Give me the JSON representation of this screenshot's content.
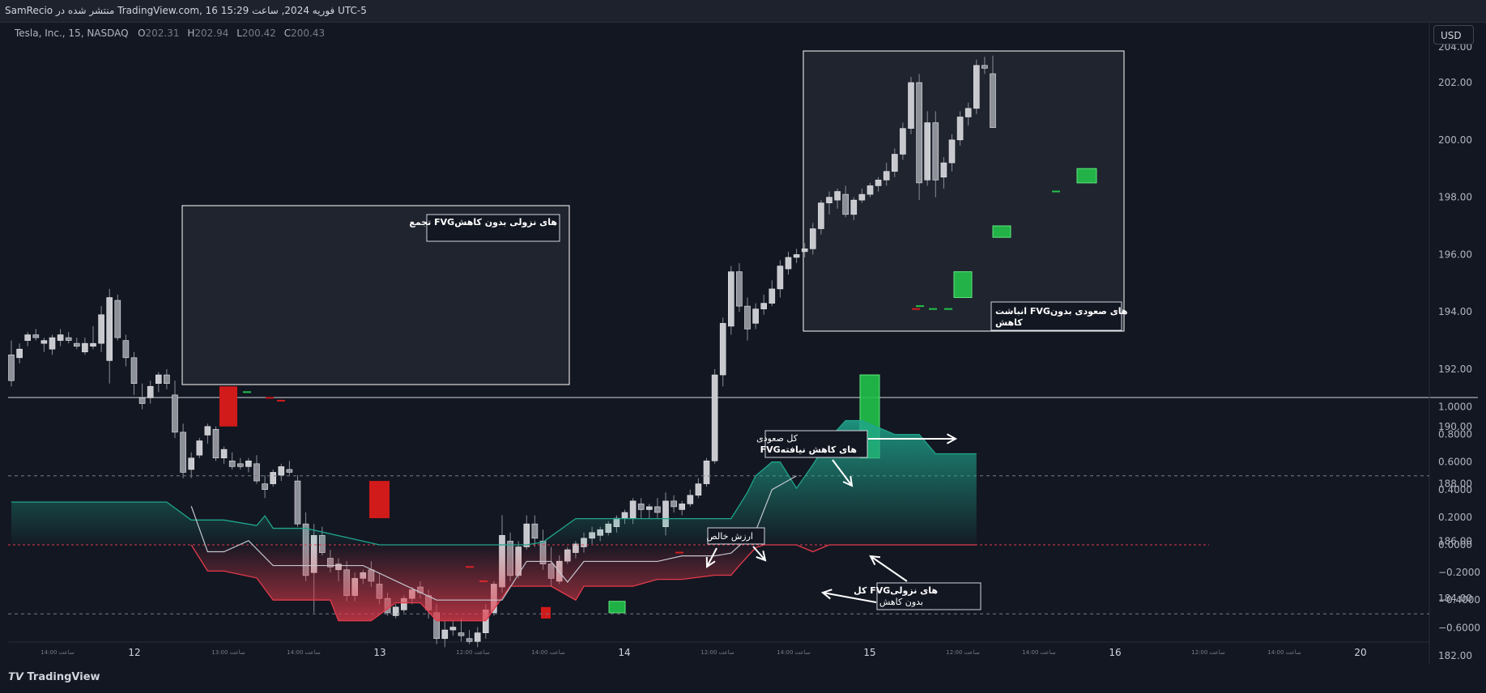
{
  "header": {
    "title": "SamRecio منتشر شده در TradingView.com, 16 فوریه 2024, ساعت 15:29 UTC-5"
  },
  "symbol": {
    "name": "Tesla, Inc., 15, NASDAQ",
    "o_label": "O",
    "o": "202.31",
    "h_label": "H",
    "h": "202.94",
    "l_label": "L",
    "l": "200.42",
    "c_label": "C",
    "c": "200.43"
  },
  "currency": "USD",
  "colors": {
    "bg": "#131722",
    "up_fvg": "#22c24a",
    "down_fvg": "#d11a1a",
    "teal": "#1fa58c",
    "red": "#e33b4b",
    "candle": "#c8c9ce"
  },
  "price_axis": {
    "ticks": [
      "202.00",
      "200.00",
      "198.00",
      "196.00",
      "194.00",
      "192.00",
      "190.00",
      "188.00",
      "186.00",
      "184.00",
      "182.00"
    ],
    "top_partial": "204.00"
  },
  "osc_axis": {
    "ticks": [
      "1.0000",
      "0.8000",
      "0.6000",
      "0.4000",
      "0.2000",
      "0.0000",
      "−0.2000",
      "−0.4000",
      "−0.6000"
    ]
  },
  "time_axis": {
    "days": [
      "12",
      "13",
      "14",
      "15",
      "16",
      "20"
    ],
    "minor": [
      "14:00 ساعت",
      "13:00 ساعت",
      "14:00 ساعت",
      "12:00 ساعت",
      "14:00 ساعت",
      "12:00 ساعت",
      "14:00 ساعت",
      "12:00 ساعت",
      "14:00 ساعت",
      "12:00 ساعت",
      "14:00 ساعت"
    ]
  },
  "annotations": {
    "bearish_box": "تجمع FVGهای نزولی بدون کاهش",
    "bullish_box_line1": "انباشت FVGهای صعودی بدون",
    "bullish_box_line2": "کاهش",
    "total_bull_line1": "کل صعودی",
    "total_bull_line2": "FVGهای کاهش نیافته",
    "net_value": "ارزش خالص",
    "total_bear_line1": "کل FVGهای نزولی",
    "total_bear_line2": "بدون کاهش"
  },
  "footer": {
    "brand": "TradingView"
  },
  "chart_data": {
    "type": "candlestick",
    "price_ylim": [
      181,
      204
    ],
    "candles": [
      [
        192.5,
        193.0,
        191.4,
        191.6
      ],
      [
        192.4,
        192.9,
        192.2,
        192.7
      ],
      [
        193.0,
        193.3,
        192.8,
        193.2
      ],
      [
        193.2,
        193.4,
        193.0,
        193.1
      ],
      [
        192.9,
        193.1,
        192.6,
        193.0
      ],
      [
        192.7,
        193.2,
        192.5,
        193.1
      ],
      [
        193.0,
        193.4,
        192.8,
        193.2
      ],
      [
        193.1,
        193.3,
        192.9,
        193.0
      ],
      [
        192.9,
        193.1,
        192.7,
        192.8
      ],
      [
        192.6,
        193.1,
        192.5,
        192.9
      ],
      [
        192.8,
        193.5,
        192.7,
        192.9
      ],
      [
        192.9,
        194.2,
        192.6,
        193.9
      ],
      [
        192.3,
        194.8,
        191.5,
        194.5
      ],
      [
        194.4,
        194.6,
        193.0,
        193.1
      ],
      [
        193.0,
        193.2,
        192.1,
        192.4
      ],
      [
        192.4,
        192.6,
        191.1,
        191.5
      ],
      [
        191.0,
        191.5,
        190.6,
        190.8
      ],
      [
        191.0,
        191.6,
        190.8,
        191.4
      ],
      [
        191.5,
        191.9,
        191.2,
        191.8
      ],
      [
        191.8,
        192.0,
        191.3,
        191.5
      ],
      [
        191.1,
        191.6,
        189.6,
        189.8
      ],
      [
        189.8,
        190.1,
        188.2,
        188.4
      ],
      [
        188.5,
        189.1,
        188.2,
        188.9
      ],
      [
        189.0,
        189.6,
        188.9,
        189.5
      ],
      [
        189.7,
        190.1,
        189.4,
        190.0
      ],
      [
        189.9,
        190.0,
        188.8,
        188.9
      ],
      [
        188.9,
        189.3,
        188.7,
        189.2
      ],
      [
        188.8,
        189.1,
        188.5,
        188.6
      ],
      [
        188.7,
        188.9,
        188.5,
        188.6
      ],
      [
        188.6,
        188.9,
        188.4,
        188.8
      ],
      [
        188.7,
        189.0,
        188.0,
        188.1
      ],
      [
        188.0,
        188.3,
        187.5,
        187.8
      ],
      [
        188.0,
        188.5,
        187.9,
        188.4
      ],
      [
        188.3,
        188.7,
        188.1,
        188.6
      ],
      [
        188.5,
        188.8,
        188.3,
        188.4
      ],
      [
        188.1,
        188.3,
        186.5,
        186.6
      ],
      [
        186.6,
        187.0,
        184.6,
        184.8
      ],
      [
        184.9,
        186.6,
        183.5,
        186.2
      ],
      [
        186.2,
        186.5,
        185.5,
        185.6
      ],
      [
        185.4,
        185.7,
        184.9,
        185.1
      ],
      [
        185.0,
        185.4,
        184.6,
        185.2
      ],
      [
        185.0,
        185.3,
        183.9,
        184.1
      ],
      [
        184.1,
        184.9,
        183.9,
        184.7
      ],
      [
        184.7,
        185.0,
        184.5,
        184.9
      ],
      [
        185.0,
        185.3,
        184.4,
        184.6
      ],
      [
        184.5,
        184.9,
        183.8,
        184.0
      ],
      [
        184.0,
        184.2,
        183.4,
        183.5
      ],
      [
        183.4,
        183.8,
        183.3,
        183.7
      ],
      [
        183.6,
        184.1,
        183.5,
        184.0
      ],
      [
        184.0,
        184.4,
        183.8,
        184.3
      ],
      [
        184.4,
        184.6,
        184.0,
        184.2
      ],
      [
        184.1,
        184.3,
        183.3,
        183.6
      ],
      [
        183.5,
        183.8,
        182.4,
        182.6
      ],
      [
        182.6,
        183.2,
        182.3,
        182.9
      ],
      [
        182.9,
        183.2,
        182.7,
        183.0
      ],
      [
        182.8,
        183.3,
        182.5,
        182.7
      ],
      [
        182.6,
        182.9,
        182.4,
        182.5
      ],
      [
        182.5,
        183.0,
        182.3,
        182.8
      ],
      [
        182.8,
        183.8,
        182.6,
        183.6
      ],
      [
        183.5,
        184.6,
        183.4,
        184.5
      ],
      [
        184.4,
        186.9,
        184.2,
        186.2
      ],
      [
        186.0,
        186.3,
        184.6,
        184.8
      ],
      [
        184.8,
        186.0,
        184.7,
        185.8
      ],
      [
        185.8,
        186.9,
        185.7,
        186.6
      ],
      [
        186.6,
        186.9,
        185.8,
        186.1
      ],
      [
        186.0,
        186.4,
        185.0,
        185.2
      ],
      [
        185.2,
        185.8,
        184.4,
        184.7
      ],
      [
        184.6,
        185.5,
        184.5,
        185.3
      ],
      [
        185.3,
        185.8,
        185.2,
        185.7
      ],
      [
        185.6,
        186.0,
        185.4,
        185.9
      ],
      [
        185.8,
        186.3,
        185.6,
        186.1
      ],
      [
        186.1,
        186.5,
        185.9,
        186.3
      ],
      [
        186.2,
        186.5,
        186.0,
        186.4
      ],
      [
        186.3,
        186.7,
        186.2,
        186.6
      ],
      [
        186.5,
        186.9,
        186.3,
        186.8
      ],
      [
        186.8,
        187.1,
        186.6,
        187.0
      ],
      [
        186.8,
        187.5,
        186.6,
        187.4
      ],
      [
        187.3,
        187.5,
        186.8,
        187.1
      ],
      [
        187.1,
        187.3,
        186.8,
        187.2
      ],
      [
        187.2,
        187.5,
        186.8,
        187.0
      ],
      [
        186.5,
        187.7,
        186.2,
        187.4
      ],
      [
        187.4,
        187.6,
        187.0,
        187.2
      ],
      [
        187.1,
        187.4,
        186.9,
        187.3
      ],
      [
        187.3,
        187.8,
        187.2,
        187.6
      ],
      [
        187.6,
        188.2,
        187.5,
        188.0
      ],
      [
        188.0,
        188.9,
        187.9,
        188.8
      ],
      [
        188.8,
        192.0,
        188.7,
        191.8
      ],
      [
        191.8,
        193.8,
        191.4,
        193.6
      ],
      [
        193.5,
        195.6,
        193.2,
        195.4
      ],
      [
        195.4,
        195.7,
        194.0,
        194.2
      ],
      [
        194.2,
        194.5,
        193.0,
        193.4
      ],
      [
        193.6,
        194.3,
        193.4,
        194.1
      ],
      [
        194.1,
        194.6,
        193.9,
        194.3
      ],
      [
        194.3,
        195.1,
        194.2,
        194.8
      ],
      [
        194.8,
        195.8,
        194.5,
        195.6
      ],
      [
        195.5,
        196.1,
        195.3,
        195.9
      ],
      [
        195.9,
        196.2,
        195.7,
        196.0
      ],
      [
        196.1,
        196.4,
        195.9,
        196.2
      ],
      [
        196.2,
        197.1,
        196.0,
        196.9
      ],
      [
        196.9,
        197.9,
        196.7,
        197.8
      ],
      [
        197.8,
        198.2,
        197.4,
        198.0
      ],
      [
        197.9,
        198.3,
        197.6,
        198.2
      ],
      [
        198.1,
        198.4,
        197.3,
        197.4
      ],
      [
        197.4,
        198.0,
        197.2,
        197.9
      ],
      [
        197.9,
        198.3,
        197.8,
        198.1
      ],
      [
        198.1,
        198.5,
        198.0,
        198.4
      ],
      [
        198.4,
        198.7,
        198.2,
        198.6
      ],
      [
        198.6,
        199.2,
        198.4,
        198.9
      ],
      [
        198.9,
        199.7,
        198.7,
        199.5
      ],
      [
        199.5,
        200.6,
        199.3,
        200.4
      ],
      [
        200.4,
        202.2,
        200.2,
        202.0
      ],
      [
        202.0,
        202.3,
        197.9,
        198.5
      ],
      [
        198.6,
        201.0,
        198.4,
        200.6
      ],
      [
        200.6,
        201.0,
        198.0,
        198.6
      ],
      [
        198.7,
        199.4,
        198.3,
        199.2
      ],
      [
        199.2,
        200.2,
        198.9,
        200.0
      ],
      [
        200.0,
        201.0,
        199.8,
        200.8
      ],
      [
        200.8,
        201.3,
        200.5,
        201.1
      ],
      [
        201.1,
        202.8,
        200.9,
        202.6
      ],
      [
        202.6,
        202.9,
        202.3,
        202.5
      ],
      [
        202.31,
        202.94,
        200.42,
        200.43
      ]
    ],
    "bearish_fvg_boxes_price_ranges": [
      [
        190.0,
        191.4
      ],
      [
        186.8,
        188.1
      ],
      [
        183.3,
        183.7
      ]
    ],
    "bullish_fvg_boxes_price_ranges": [
      [
        188.9,
        191.8
      ],
      [
        183.5,
        183.9
      ],
      [
        198.5,
        199.0
      ],
      [
        196.6,
        197.0
      ],
      [
        194.5,
        195.4
      ]
    ],
    "oscillator_ylim": [
      -0.67,
      1.05
    ],
    "oscillator_series": [
      {
        "color": "#1fa58c",
        "x": [
          0,
          19,
          22,
          26,
          30,
          31,
          32,
          36,
          45,
          52,
          63,
          65,
          69,
          75,
          86,
          88,
          90,
          91,
          93,
          94,
          96,
          98,
          100,
          102,
          104,
          108,
          111,
          113,
          118
        ],
        "values": [
          0.31,
          0.31,
          0.18,
          0.18,
          0.14,
          0.21,
          0.12,
          0.12,
          0.0,
          0.0,
          0.0,
          0.02,
          0.19,
          0.19,
          0.19,
          0.19,
          0.38,
          0.5,
          0.6,
          0.6,
          0.41,
          0.58,
          0.77,
          0.9,
          0.9,
          0.8,
          0.8,
          0.66,
          0.66
        ]
      },
      {
        "color": "#e33b4b",
        "x": [
          22,
          24,
          26,
          30,
          32,
          36,
          39,
          40,
          44,
          47,
          50,
          52,
          54,
          58,
          61,
          64,
          66,
          69,
          70,
          72,
          76,
          79,
          82,
          86,
          88,
          89,
          91,
          92,
          94,
          96,
          98,
          100,
          118
        ],
        "values": [
          0.0,
          -0.19,
          -0.19,
          -0.24,
          -0.4,
          -0.4,
          -0.4,
          -0.55,
          -0.55,
          -0.42,
          -0.42,
          -0.55,
          -0.55,
          -0.55,
          -0.3,
          -0.3,
          -0.3,
          -0.4,
          -0.3,
          -0.3,
          -0.3,
          -0.25,
          -0.25,
          -0.22,
          -0.22,
          -0.15,
          -0.02,
          0.0,
          0.0,
          0.0,
          -0.05,
          0.0,
          0.0
        ]
      },
      {
        "color": "#c3c6cf",
        "x": [
          22,
          24,
          26,
          29,
          32,
          36,
          43,
          52,
          56,
          60,
          63,
          66,
          68,
          70,
          72,
          76,
          79,
          82,
          86,
          88,
          91,
          93,
          96
        ],
        "values": [
          0.28,
          -0.05,
          -0.05,
          0.03,
          -0.15,
          -0.15,
          -0.15,
          -0.4,
          -0.4,
          -0.4,
          -0.12,
          -0.12,
          -0.27,
          -0.12,
          -0.12,
          -0.12,
          -0.12,
          -0.08,
          -0.08,
          -0.06,
          0.1,
          0.4,
          0.5
        ]
      }
    ]
  }
}
